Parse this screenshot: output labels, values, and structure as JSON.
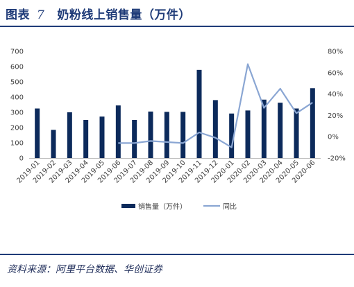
{
  "header": {
    "figure_label": "图表",
    "figure_number": "7",
    "title": "奶粉线上销售量（万件）"
  },
  "footer": {
    "source": "资料来源：阿里平台数据、华创证券"
  },
  "colors": {
    "bar": "#0c2a5b",
    "line": "#8aa6d3",
    "rule": "#1f3b78",
    "axis": "#bfbfbf"
  },
  "chart_data": {
    "type": "bar",
    "categories": [
      "2019-01",
      "2019-02",
      "2019-03",
      "2019-04",
      "2019-05",
      "2019-06",
      "2019-07",
      "2019-08",
      "2019-09",
      "2019-10",
      "2019-11",
      "2019-12",
      "2020-01",
      "2020-02",
      "2020-03",
      "2020-04",
      "2020-05",
      "2020-06"
    ],
    "series": [
      {
        "name": "销售量（万件）",
        "type": "bar",
        "axis": "left",
        "values": [
          325,
          185,
          300,
          250,
          272,
          345,
          250,
          305,
          303,
          303,
          578,
          380,
          292,
          312,
          383,
          363,
          325,
          458
        ]
      },
      {
        "name": "同比",
        "type": "line",
        "axis": "right",
        "values": [
          null,
          null,
          null,
          null,
          null,
          -6,
          -6,
          -4,
          -5,
          -6,
          4,
          -1,
          -10,
          68,
          27,
          45,
          22,
          32
        ]
      }
    ],
    "ylim_left": [
      0,
      700
    ],
    "yticks_left": [
      "0",
      "100",
      "200",
      "300",
      "400",
      "500",
      "600",
      "700"
    ],
    "ylim_right": [
      -20,
      80
    ],
    "yticks_right": [
      "-20%",
      "0%",
      "20%",
      "40%",
      "60%",
      "80%"
    ],
    "legend": {
      "position": "bottom",
      "entries": [
        "销售量（万件）",
        "同比"
      ]
    }
  }
}
